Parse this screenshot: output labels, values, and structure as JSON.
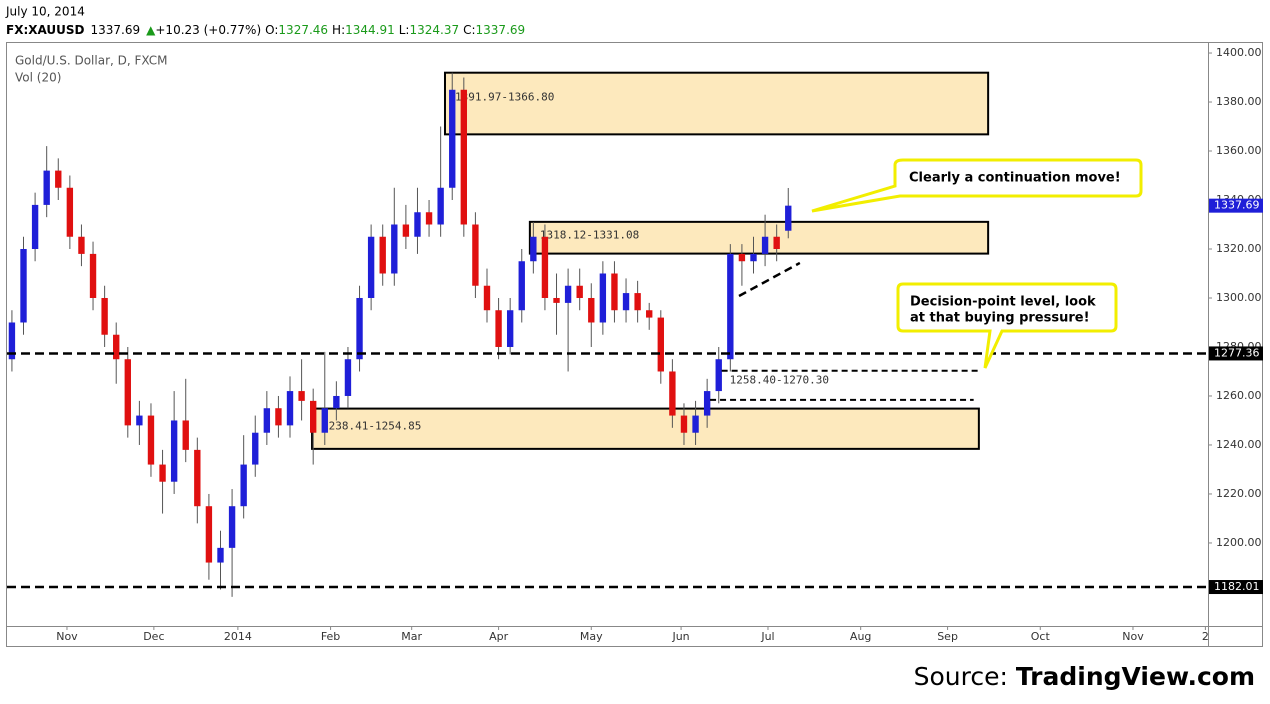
{
  "header": {
    "date": "July 10, 2014",
    "symbol": "FX:XAUUSD",
    "change": "+10.23 (+0.77%)",
    "o_label": "O:",
    "h_label": "H:",
    "l_label": "L:",
    "c_label": "C:"
  },
  "chart_data": {
    "type": "candlestick",
    "subtitle": "Gold/U.S. Dollar, D, FXCM",
    "indicator": "Vol (20)",
    "up_color": "#1f1fd8",
    "down_color": "#e01010",
    "xlim": [
      -20.7,
      393.9
    ],
    "xticks": [
      {
        "value": 0,
        "label": "Nov"
      },
      {
        "value": 30,
        "label": "Dec"
      },
      {
        "value": 59,
        "label": "2014"
      },
      {
        "value": 91,
        "label": "Feb"
      },
      {
        "value": 119,
        "label": "Mar"
      },
      {
        "value": 149,
        "label": "Apr"
      },
      {
        "value": 181,
        "label": "May"
      },
      {
        "value": 212,
        "label": "Jun"
      },
      {
        "value": 242,
        "label": "Jul"
      },
      {
        "value": 274,
        "label": "Aug"
      },
      {
        "value": 304,
        "label": "Sep"
      },
      {
        "value": 336,
        "label": "Oct"
      },
      {
        "value": 368,
        "label": "Nov"
      },
      {
        "value": 393,
        "label": "2"
      }
    ],
    "ylim": [
      1166.1,
      1404.5
    ],
    "yticks": [
      {
        "value": 1200,
        "label": "1200.00"
      },
      {
        "value": 1220,
        "label": "1220.00"
      },
      {
        "value": 1240,
        "label": "1240.00"
      },
      {
        "value": 1260,
        "label": "1260.00"
      },
      {
        "value": 1280,
        "label": "1280.00"
      },
      {
        "value": 1300,
        "label": "1300.00"
      },
      {
        "value": 1320,
        "label": "1320.00"
      },
      {
        "value": 1340,
        "label": "1340.00"
      },
      {
        "value": 1360,
        "label": "1360.00"
      },
      {
        "value": 1380,
        "label": "1380.00"
      },
      {
        "value": 1400,
        "label": "1400.00"
      }
    ],
    "series": [
      {
        "x": [
          -19,
          -15,
          -11,
          -7,
          -3,
          1,
          5,
          9,
          13,
          17,
          21,
          25,
          29,
          33,
          37,
          41,
          45,
          49,
          53,
          57,
          61,
          65,
          69,
          73,
          77,
          81,
          85,
          89,
          93,
          97,
          101,
          105,
          109,
          113,
          117,
          121,
          125,
          129,
          133,
          137,
          141,
          145,
          149,
          153,
          157,
          161,
          165,
          169,
          173,
          177,
          181,
          185,
          189,
          193,
          197,
          201,
          205,
          209,
          213,
          217,
          221,
          225,
          229,
          233,
          237,
          241,
          245,
          249
        ],
        "open": [
          1275,
          1290,
          1320,
          1338,
          1352,
          1345,
          1325,
          1318,
          1300,
          1285,
          1275,
          1248,
          1252,
          1232,
          1225,
          1250,
          1238,
          1215,
          1192,
          1198,
          1215,
          1232,
          1245,
          1255,
          1248,
          1262,
          1258,
          1245,
          1255,
          1260,
          1275,
          1300,
          1325,
          1310,
          1330,
          1325,
          1335,
          1330,
          1345,
          1385,
          1330,
          1305,
          1295,
          1280,
          1295,
          1315,
          1325,
          1300,
          1298,
          1305,
          1300,
          1290,
          1310,
          1295,
          1302,
          1295,
          1292,
          1270,
          1252,
          1245,
          1252,
          1262,
          1275,
          1318,
          1315,
          1318,
          1325,
          1327.46
        ],
        "high": [
          1295,
          1325,
          1343,
          1362,
          1357,
          1350,
          1330,
          1323,
          1305,
          1290,
          1280,
          1258,
          1257,
          1238,
          1262,
          1267,
          1243,
          1220,
          1205,
          1222,
          1244,
          1252,
          1262,
          1260,
          1268,
          1275,
          1263,
          1278,
          1266,
          1280,
          1305,
          1330,
          1330,
          1345,
          1338,
          1345,
          1340,
          1370,
          1391.97,
          1390,
          1335,
          1312,
          1300,
          1300,
          1320,
          1331,
          1330,
          1310,
          1312,
          1312,
          1306,
          1315,
          1315,
          1308,
          1307,
          1298,
          1295,
          1275,
          1257,
          1258,
          1267,
          1280,
          1322,
          1322,
          1325,
          1334,
          1330,
          1344.91
        ],
        "low": [
          1270,
          1285,
          1315,
          1333,
          1340,
          1320,
          1313,
          1295,
          1280,
          1265,
          1243,
          1240,
          1227,
          1212,
          1220,
          1233,
          1208,
          1185,
          1181,
          1178,
          1210,
          1227,
          1240,
          1243,
          1243,
          1250,
          1232,
          1240,
          1250,
          1255,
          1270,
          1295,
          1305,
          1305,
          1320,
          1318,
          1325,
          1325,
          1340,
          1325,
          1300,
          1290,
          1275,
          1277,
          1290,
          1310,
          1295,
          1285,
          1270,
          1295,
          1280,
          1285,
          1290,
          1290,
          1290,
          1287,
          1265,
          1247,
          1240,
          1240,
          1247,
          1257,
          1270,
          1305,
          1310,
          1313,
          1315,
          1324.37
        ],
        "close": [
          1290,
          1320,
          1338,
          1352,
          1345,
          1325,
          1318,
          1300,
          1285,
          1275,
          1248,
          1252,
          1232,
          1225,
          1250,
          1238,
          1215,
          1192,
          1198,
          1215,
          1232,
          1245,
          1255,
          1248,
          1262,
          1258,
          1245,
          1255,
          1260,
          1275,
          1300,
          1325,
          1310,
          1330,
          1325,
          1335,
          1330,
          1345,
          1385,
          1330,
          1305,
          1295,
          1280,
          1295,
          1315,
          1325,
          1300,
          1298,
          1305,
          1300,
          1290,
          1310,
          1295,
          1302,
          1295,
          1292,
          1270,
          1252,
          1245,
          1252,
          1262,
          1275,
          1318,
          1315,
          1318,
          1325,
          1320,
          1337.69
        ]
      }
    ],
    "hlines": [
      {
        "value": 1277.36
      },
      {
        "value": 1182.01
      }
    ],
    "zones": [
      {
        "label": "1391.97-1366.80",
        "top": 1391.97,
        "bottom": 1366.8,
        "x": [
          130.5,
          318
        ]
      },
      {
        "label": "1318.12-1331.08",
        "top": 1331.08,
        "bottom": 1318.12,
        "x": [
          159.8,
          318
        ]
      },
      {
        "label": "1238.41-1254.85",
        "top": 1254.85,
        "bottom": 1238.41,
        "x": [
          84.6,
          314.8
        ]
      }
    ],
    "levels": [
      {
        "value": 1270.3,
        "x": [
          226,
          315
        ]
      },
      {
        "value": 1258.4,
        "x": [
          222,
          313
        ]
      }
    ],
    "levels_label": "1258.40-1270.30",
    "trendline": {
      "x": [
        232,
        253
      ],
      "y": [
        1300.8,
        1314.3
      ]
    },
    "annotations": [
      {
        "lines": [
          "Clearly a continuation move!"
        ]
      },
      {
        "lines": [
          "Decision-point level, look",
          "at that buying pressure!"
        ]
      }
    ]
  },
  "source": {
    "prefix": "Source: ",
    "brand": "TradingView.com"
  }
}
